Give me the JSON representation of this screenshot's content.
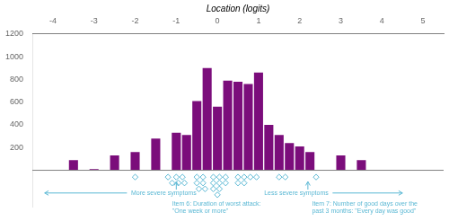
{
  "chart_data": {
    "type": "bar",
    "xlabel": "Location (logits)",
    "xlim": [
      -4.5,
      5.5
    ],
    "xticks": [
      -4,
      -3,
      -2,
      -1,
      0,
      1,
      2,
      3,
      4,
      5
    ],
    "ylim": [
      -320,
      1200
    ],
    "yticks": [
      200,
      400,
      600,
      800,
      1000,
      1200
    ],
    "grid": false,
    "background_color": "#ffffff",
    "series": [
      {
        "type": "bar",
        "color": "#7B0D7B",
        "x": [
          -3.5,
          -3.0,
          -2.5,
          -2.0,
          -1.5,
          -1.0,
          -0.75,
          -0.5,
          -0.25,
          0.0,
          0.25,
          0.5,
          0.75,
          1.0,
          1.25,
          1.5,
          1.75,
          2.0,
          2.25,
          2.5,
          3.0,
          3.5
        ],
        "values": [
          90,
          10,
          130,
          160,
          280,
          330,
          310,
          610,
          900,
          560,
          790,
          780,
          760,
          860,
          400,
          310,
          240,
          210,
          160,
          0,
          130,
          90
        ]
      },
      {
        "type": "scatter",
        "marker": "diamond",
        "color": "#5BB8D4",
        "x": [
          -2.0,
          -1.2,
          -1.0,
          -0.85,
          -1.1,
          -0.95,
          -0.8,
          -0.5,
          -0.35,
          -0.5,
          -0.35,
          -0.45,
          -0.3,
          -0.1,
          0.05,
          0.2,
          -0.1,
          0.05,
          0.2,
          -0.1,
          0.05,
          0.0,
          0.5,
          0.65,
          0.5,
          0.65,
          0.8,
          0.95,
          1.5,
          1.65,
          2.4
        ],
        "values": [
          -60,
          -60,
          -60,
          -60,
          -112,
          -112,
          -112,
          -60,
          -60,
          -112,
          -112,
          -164,
          -164,
          -60,
          -60,
          -60,
          -112,
          -112,
          -112,
          -164,
          -164,
          -216,
          -60,
          -60,
          -112,
          -112,
          -60,
          -60,
          -60,
          -60,
          -60
        ]
      }
    ],
    "reference_line_y": 0,
    "arrows": [
      {
        "from": [
          -2.2,
          -200
        ],
        "to": [
          -4.2,
          -200
        ],
        "color": "#5BB8D4"
      },
      {
        "from": [
          2.8,
          -200
        ],
        "to": [
          4.5,
          -200
        ],
        "color": "#5BB8D4"
      },
      {
        "from": [
          -1.0,
          -170
        ],
        "to": [
          -1.0,
          -100
        ],
        "color": "#5BB8D4"
      },
      {
        "from": [
          2.2,
          -170
        ],
        "to": [
          2.2,
          -100
        ],
        "color": "#5BB8D4"
      }
    ],
    "annotations": [
      {
        "text": "More severe symptoms",
        "x": -2.1,
        "y": -200,
        "color": "#5BB8D4"
      },
      {
        "text": "Less severe symptoms",
        "x": 2.7,
        "y": -200,
        "color": "#5BB8D4"
      },
      {
        "text": "Item 6: Duration of worst attack:\n\"One week or more\"",
        "x": -1.1,
        "y": -270,
        "color": "#5BB8D4"
      },
      {
        "text": "Item 7: Number of good days over the\npast 3 months: \"Every day was good\"",
        "x": 2.3,
        "y": -270,
        "color": "#5BB8D4"
      }
    ]
  }
}
